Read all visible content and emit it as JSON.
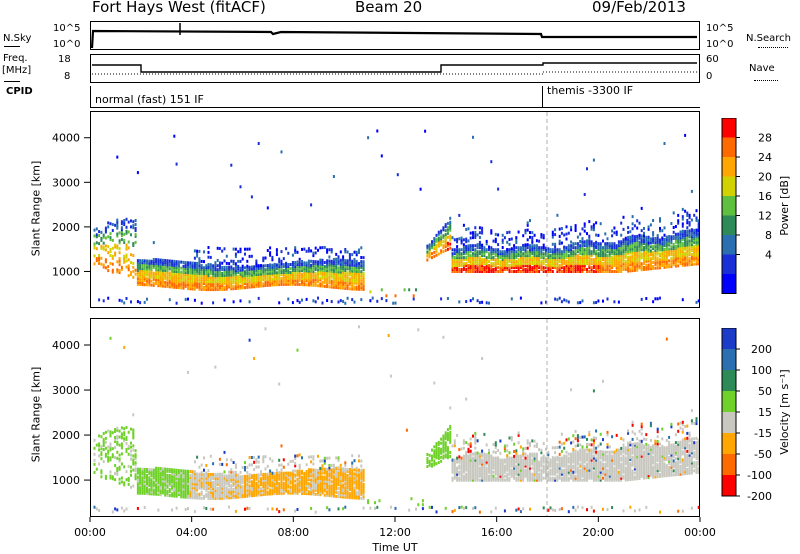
{
  "header": {
    "station": "Fort Hays West (fitACF)",
    "beam": "Beam 20",
    "date": "09/Feb/2013"
  },
  "side_labels": {
    "nsky": "N.Sky",
    "nsky_ticks": [
      "10^5",
      "10^0"
    ],
    "nsearch": "N.Search",
    "freq": "Freq.",
    "freq_unit": "[MHz]",
    "freq_ticks": [
      "18",
      "8"
    ],
    "nave": "Nave",
    "nave_ticks": [
      "60",
      "0"
    ],
    "cpid": "CPID"
  },
  "cpid_segments": [
    {
      "label": "normal (fast) 151 IF",
      "start_hour": 0
    },
    {
      "label": "themis -3300 IF",
      "start_hour": 18
    }
  ],
  "chart_data": [
    {
      "type": "heatmap",
      "name": "power",
      "ylabel": "Slant Range [km]",
      "yticks": [
        1000,
        2000,
        3000,
        4000
      ],
      "ylim": [
        180,
        4600
      ],
      "xlim": [
        0,
        24
      ],
      "colorbar_label": "Power [dB]",
      "colorbar_ticks": [
        "28",
        "24",
        "20",
        "16",
        "12",
        "8",
        "4"
      ],
      "colors": [
        "#ff0000",
        "#ff6a00",
        "#ffa600",
        "#d2d200",
        "#5fbf3f",
        "#2e8b57",
        "#2a6fb0",
        "#1a2fd8",
        "#0000ff"
      ]
    },
    {
      "type": "heatmap",
      "name": "velocity",
      "ylabel": "Slant Range [km]",
      "yticks": [
        1000,
        2000,
        3000,
        4000
      ],
      "ylim": [
        180,
        4600
      ],
      "xlim": [
        0,
        24
      ],
      "colorbar_label": "Velocity [m s^-1]",
      "colorbar_ticks": [
        "200",
        "100",
        "50",
        "15",
        "-15",
        "-50",
        "-100",
        "-200"
      ],
      "colors": [
        "#1a3cc8",
        "#2a6fb0",
        "#2e8b57",
        "#6fd12a",
        "#c8c8c0",
        "#ffa600",
        "#ff6a00",
        "#ff0000"
      ],
      "xlabel": "Time UT",
      "xticks": [
        "00:00",
        "04:00",
        "08:00",
        "12:00",
        "16:00",
        "20:00",
        "00:00"
      ]
    }
  ]
}
